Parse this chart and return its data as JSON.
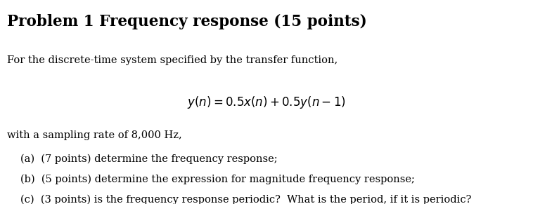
{
  "title": "Problem 1 Frequency response (15 points)",
  "line1": "For the discrete-time system specified by the transfer function,",
  "line2": "with a sampling rate of 8,000 Hz,",
  "item_a": "(a)  (7 points) determine the frequency response;",
  "item_b": "(b)  (5 points) determine the expression for magnitude frequency response;",
  "item_c": "(c)  (3 points) is the frequency response periodic?  What is the period, if it is periodic?",
  "bg_color": "#ffffff",
  "text_color": "#000000",
  "title_fontsize": 15.5,
  "body_fontsize": 10.5,
  "eq_fontsize": 12,
  "fig_width": 7.58,
  "fig_height": 2.91
}
